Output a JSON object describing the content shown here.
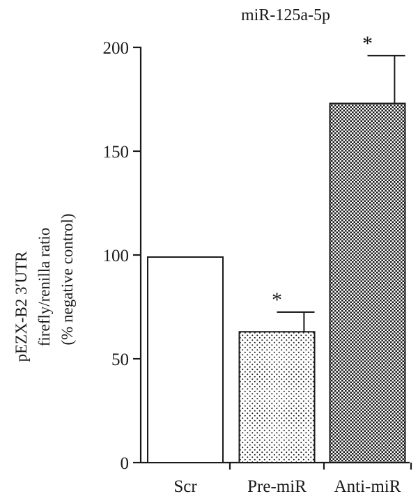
{
  "chart_data": {
    "type": "bar",
    "title": "miR-125a-5p",
    "categories": [
      "Scr",
      "Pre-miR",
      "Anti-miR"
    ],
    "values": [
      99,
      63,
      173
    ],
    "error_plus": [
      0,
      9.5,
      23
    ],
    "significance": [
      "",
      "*",
      "*"
    ],
    "fill_patterns": [
      "solid-white",
      "sparse-dots",
      "dense-checker"
    ],
    "ylabel_lines": [
      "pEZX-B2 3′UTR",
      "firefly/renilla ratio",
      "(% negative control)"
    ],
    "xlabel": "",
    "ylim": [
      0,
      200
    ],
    "yticks": [
      0,
      50,
      100,
      150,
      200
    ],
    "grid": false,
    "legend": "none"
  }
}
